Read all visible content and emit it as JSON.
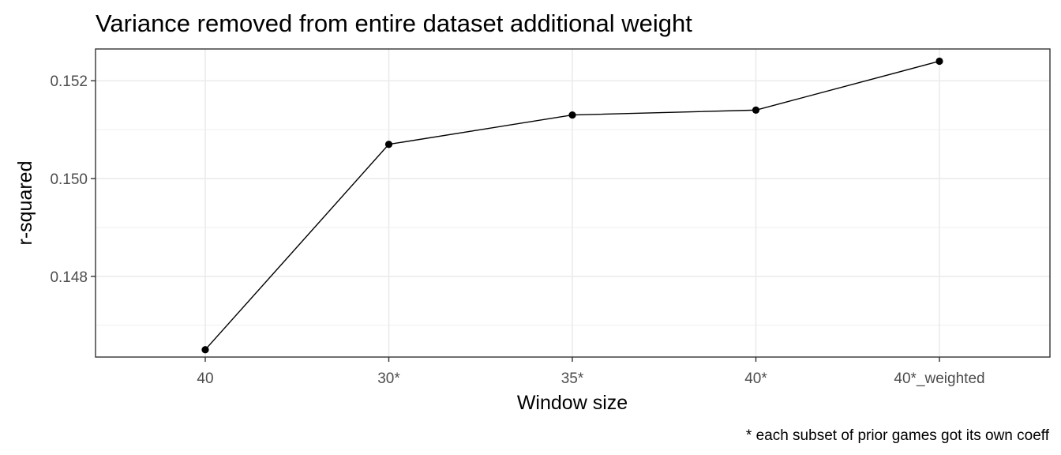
{
  "chart_data": {
    "type": "line",
    "title": "Variance removed from entire dataset additional weight",
    "xlabel": "Window size",
    "ylabel": "r-squared",
    "caption": "* each subset of prior games got its own coeff",
    "categories": [
      "40",
      "30*",
      "35*",
      "40*",
      "40*_weighted"
    ],
    "series": [
      {
        "values": [
          0.1465,
          0.1507,
          0.1513,
          0.1514,
          0.1524
        ]
      }
    ],
    "ylim": [
      0.14635,
      0.15265
    ],
    "y_ticks": [
      "0.148",
      "0.150",
      "0.152"
    ],
    "y_tick_values": [
      0.148,
      0.15,
      0.152
    ],
    "y_minor_values": [
      0.147,
      0.149,
      0.151
    ],
    "grid": true,
    "legend": "none",
    "colors": {
      "line": "#000000",
      "grid": "#ebebeb",
      "panel_border": "#333333",
      "tick_label": "#4d4d4d"
    }
  }
}
